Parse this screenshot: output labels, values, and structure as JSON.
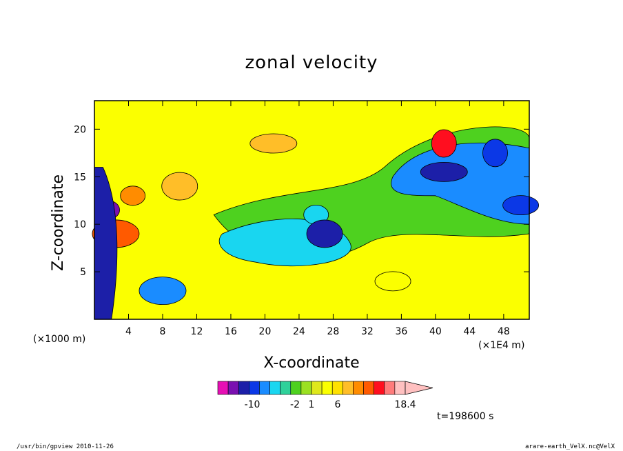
{
  "chart_data": {
    "type": "heatmap",
    "title": "zonal velocity",
    "xlabel": "X-coordinate",
    "ylabel": "Z-coordinate",
    "x_unit_label": "(×1E4 m)",
    "y_unit_label": "(×1000 m)",
    "x_ticks": [
      "4",
      "8",
      "12",
      "16",
      "20",
      "24",
      "28",
      "32",
      "36",
      "40",
      "44",
      "48"
    ],
    "y_ticks": [
      "5",
      "10",
      "15",
      "20"
    ],
    "xlim": [
      0,
      51
    ],
    "ylim": [
      0,
      23
    ],
    "colorbar": {
      "labels": [
        "-10",
        "-2",
        "1",
        "6",
        "18.4"
      ],
      "levels": [
        -16,
        -12,
        -8,
        -4,
        -3,
        -2,
        -1,
        0,
        1,
        2,
        3,
        4,
        6,
        8,
        10,
        12,
        14,
        16,
        18.4
      ],
      "colors": [
        "#e60fb4",
        "#7a10b0",
        "#1c1fa8",
        "#0b38e6",
        "#1a8cff",
        "#19d6f0",
        "#2fd19a",
        "#4ed11f",
        "#9be021",
        "#dfe81c",
        "#fbff00",
        "#ffe100",
        "#ffbe28",
        "#ff8c00",
        "#ff5a00",
        "#ff0e1f",
        "#ff7b7b",
        "#ffc0c0"
      ]
    },
    "field": {
      "blobs": [
        {
          "x": 26,
          "y": 11,
          "level": 5
        },
        {
          "x": 27,
          "y": 9,
          "level": 2
        },
        {
          "x": 41,
          "y": 15.5,
          "level": 2
        },
        {
          "x": 47,
          "y": 17.5,
          "level": 3
        },
        {
          "x": 50,
          "y": 12,
          "level": 3
        },
        {
          "x": 2.5,
          "y": 9,
          "level": 14
        },
        {
          "x": 4.5,
          "y": 13,
          "level": 13
        },
        {
          "x": 10,
          "y": 14,
          "level": 12
        },
        {
          "x": 21,
          "y": 18.5,
          "level": 12
        },
        {
          "x": 41,
          "y": 18.5,
          "level": 15
        },
        {
          "x": 35,
          "y": 4,
          "level": 10
        },
        {
          "x": 8,
          "y": 3,
          "level": 4
        },
        {
          "x": 1.5,
          "y": 11.5,
          "level": 1
        }
      ]
    },
    "time_label": "t=198600 s"
  },
  "footer": {
    "left": "/usr/bin/gpview  2010-11-26",
    "right": "arare-earth_VelX.nc@VelX"
  }
}
